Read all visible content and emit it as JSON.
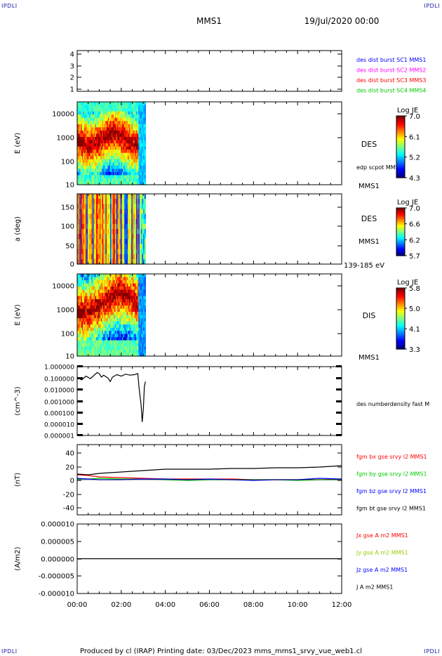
{
  "corner_marks": {
    "top_left": "IPDLI",
    "top_right": "IPDLI",
    "bottom_left": "IPDLI",
    "bottom_right": "IPDLI"
  },
  "header": {
    "spacecraft": "MMS1",
    "date": "19/Jul/2020 00:00"
  },
  "footer": {
    "text": "Produced by cl (IRAP)   Printing date: 03/Dec/2023   mms_mms1_srvy_vue_web1.cl"
  },
  "colors": {
    "blue": "#0000ff",
    "magenta": "#ff00ff",
    "red": "#ff0000",
    "green": "#00cc00",
    "black": "#000000",
    "yellowgreen": "#99cc00"
  },
  "time_axis": {
    "range_hours": [
      0,
      12
    ],
    "ticks": [
      "00:00",
      "02:00",
      "04:00",
      "06:00",
      "08:00",
      "10:00",
      "12:00"
    ]
  },
  "panels": [
    {
      "id": "des-dist",
      "yticks": [
        "4",
        "3",
        "2",
        "1"
      ],
      "ylabel": "",
      "legend": [
        {
          "text": "des dist burst SC1 MMS1",
          "color": "#0000ff"
        },
        {
          "text": "des dist burst SC2 MMS2",
          "color": "#ff00ff"
        },
        {
          "text": "des dist burst SC3 MMS3",
          "color": "#ff0000"
        },
        {
          "text": "des dist burst SC4 MMS4",
          "color": "#00cc00"
        }
      ]
    },
    {
      "id": "des-energy",
      "ylabel": "E (eV)",
      "yticks": [
        "10000",
        "1000",
        "100",
        "10"
      ],
      "side_labels": {
        "instrument": "DES",
        "overlay": "edp scpot MMS1",
        "sc": "MMS1"
      },
      "colorbar": {
        "title": "Log JE",
        "ticks": [
          "7.0",
          "6.1",
          "5.2",
          "4.3"
        ],
        "range": [
          4.3,
          7.0
        ]
      },
      "data_extent_hours": [
        0,
        3.1
      ]
    },
    {
      "id": "des-pitch",
      "ylabel": "a (deg)",
      "yticks": [
        "150",
        "100",
        "50",
        "0"
      ],
      "side_labels": {
        "instrument": "DES",
        "sc": "MMS1",
        "energy": "139-185 eV"
      },
      "colorbar": {
        "title": "Log JE",
        "ticks": [
          "7.0",
          "6.6",
          "6.2",
          "5.7"
        ],
        "range": [
          5.7,
          7.0
        ]
      },
      "data_extent_hours": [
        0,
        3.1
      ]
    },
    {
      "id": "dis-energy",
      "ylabel": "E (eV)",
      "yticks": [
        "10000",
        "1000",
        "100",
        "10"
      ],
      "side_labels": {
        "instrument": "DIS",
        "sc": "MMS1"
      },
      "colorbar": {
        "title": "Log JE",
        "ticks": [
          "5.8",
          "5.0",
          "4.1",
          "3.3"
        ],
        "range": [
          3.3,
          5.8
        ]
      },
      "data_extent_hours": [
        0,
        3.1
      ]
    },
    {
      "id": "density",
      "ylabel": "(cm^-3)",
      "yticks": [
        "1.000000",
        "0.100000",
        "0.010000",
        "0.001000",
        "0.000100",
        "0.000010",
        "0.000001"
      ],
      "legend": [
        {
          "text": "des numberdensity fast M",
          "color": "#000000"
        }
      ]
    },
    {
      "id": "bfield",
      "ylabel": "(nT)",
      "yticks": [
        "40",
        "20",
        "0",
        "-20",
        "-40"
      ],
      "legend": [
        {
          "text": "fgm bx gse srvy l2 MMS1",
          "color": "#ff0000"
        },
        {
          "text": "fgm by gse srvy l2 MMS1",
          "color": "#00cc00"
        },
        {
          "text": "fgm bz gse srvy l2 MMS1",
          "color": "#0000ff"
        },
        {
          "text": "fgm bt gse srvy l2 MMS1",
          "color": "#000000"
        }
      ]
    },
    {
      "id": "current",
      "ylabel": "(A/m2)",
      "yticks": [
        "0.000010",
        "0.000005",
        "0.000000",
        "-0.000005",
        "-0.000010"
      ],
      "legend": [
        {
          "text": "Jx gse A m2 MMS1",
          "color": "#ff0000"
        },
        {
          "text": "Jy gse A m2 MMS1",
          "color": "#99cc00"
        },
        {
          "text": "Jz gse A m2 MMS1",
          "color": "#0000ff"
        },
        {
          "text": "J A m2 MMS1",
          "color": "#000000"
        }
      ]
    }
  ],
  "chart_data": [
    {
      "type": "heatmap",
      "panel": "des-energy",
      "title": "DES",
      "ylabel": "E (eV)",
      "yscale": "log",
      "ylim": [
        10,
        30000
      ],
      "xlim_hours": [
        0,
        12
      ],
      "colorbar": "Log JE",
      "clim": [
        4.3,
        7.0
      ],
      "data_extent_hours": [
        0,
        3.1
      ]
    },
    {
      "type": "heatmap",
      "panel": "des-pitch",
      "title": "DES",
      "ylabel": "a (deg)",
      "ylim": [
        0,
        180
      ],
      "energy_range": "139-185 eV",
      "colorbar": "Log JE",
      "clim": [
        5.7,
        7.0
      ],
      "data_extent_hours": [
        0,
        3.1
      ]
    },
    {
      "type": "heatmap",
      "panel": "dis-energy",
      "title": "DIS",
      "ylabel": "E (eV)",
      "yscale": "log",
      "ylim": [
        10,
        30000
      ],
      "colorbar": "Log JE",
      "clim": [
        3.3,
        5.8
      ],
      "data_extent_hours": [
        0,
        3.1
      ]
    },
    {
      "type": "line",
      "panel": "density",
      "ylabel": "(cm^-3)",
      "yscale": "log",
      "ylim": [
        1e-06,
        1.0
      ],
      "series": [
        {
          "name": "des numberdensity fast M",
          "color": "#000000",
          "x": [
            0.0,
            0.2,
            0.4,
            0.6,
            0.8,
            0.9,
            1.0,
            1.1,
            1.2,
            1.4,
            1.5,
            1.6,
            1.8,
            2.0,
            2.2,
            2.4,
            2.6,
            2.75,
            2.8,
            2.85,
            2.9,
            2.95,
            3.0,
            3.05,
            3.1
          ],
          "y": [
            0.12,
            0.07,
            0.15,
            0.09,
            0.2,
            0.3,
            0.25,
            0.12,
            0.18,
            0.1,
            0.05,
            0.12,
            0.2,
            0.15,
            0.22,
            0.18,
            0.2,
            0.25,
            0.02,
            0.003,
            0.0005,
            1.5e-05,
            0.0002,
            0.02,
            0.05
          ]
        }
      ]
    },
    {
      "type": "line",
      "panel": "bfield",
      "ylabel": "(nT)",
      "ylim": [
        -50,
        50
      ],
      "series": [
        {
          "name": "fgm bx gse srvy l2 MMS1",
          "color": "#ff0000",
          "x": [
            0,
            0.5,
            1,
            2,
            3,
            4,
            5,
            6,
            7,
            8,
            9,
            10,
            11,
            12
          ],
          "y": [
            7,
            6,
            4,
            3,
            2,
            1,
            1,
            1,
            1,
            0,
            0,
            0,
            0,
            1
          ]
        },
        {
          "name": "fgm by gse srvy l2 MMS1",
          "color": "#00cc00",
          "x": [
            0,
            0.5,
            1,
            2,
            3,
            4,
            5,
            6,
            7,
            8,
            9,
            10,
            11,
            12
          ],
          "y": [
            1,
            1,
            2,
            1,
            1,
            0,
            -1,
            0,
            0,
            0,
            0,
            -1,
            0,
            0
          ]
        },
        {
          "name": "fgm bz gse srvy l2 MMS1",
          "color": "#0000ff",
          "x": [
            0,
            0.5,
            1,
            2,
            3,
            4,
            5,
            6,
            7,
            8,
            9,
            10,
            11,
            12
          ],
          "y": [
            2,
            1,
            0,
            0,
            1,
            1,
            0,
            1,
            0,
            -1,
            0,
            0,
            2,
            1
          ]
        },
        {
          "name": "fgm bt gse srvy l2 MMS1",
          "color": "#000000",
          "x": [
            0,
            0.5,
            1,
            2,
            3,
            4,
            5,
            6,
            7,
            8,
            9,
            10,
            11,
            12
          ],
          "y": [
            8,
            7,
            9,
            11,
            13,
            15,
            15,
            15,
            16,
            16,
            17,
            17,
            18,
            20
          ]
        }
      ]
    },
    {
      "type": "line",
      "panel": "current",
      "ylabel": "(A/m2)",
      "ylim": [
        -1e-05,
        1e-05
      ],
      "series": [
        {
          "name": "J A m2 MMS1",
          "color": "#000000",
          "x": [
            0,
            12
          ],
          "y": [
            0,
            0
          ]
        }
      ]
    }
  ]
}
